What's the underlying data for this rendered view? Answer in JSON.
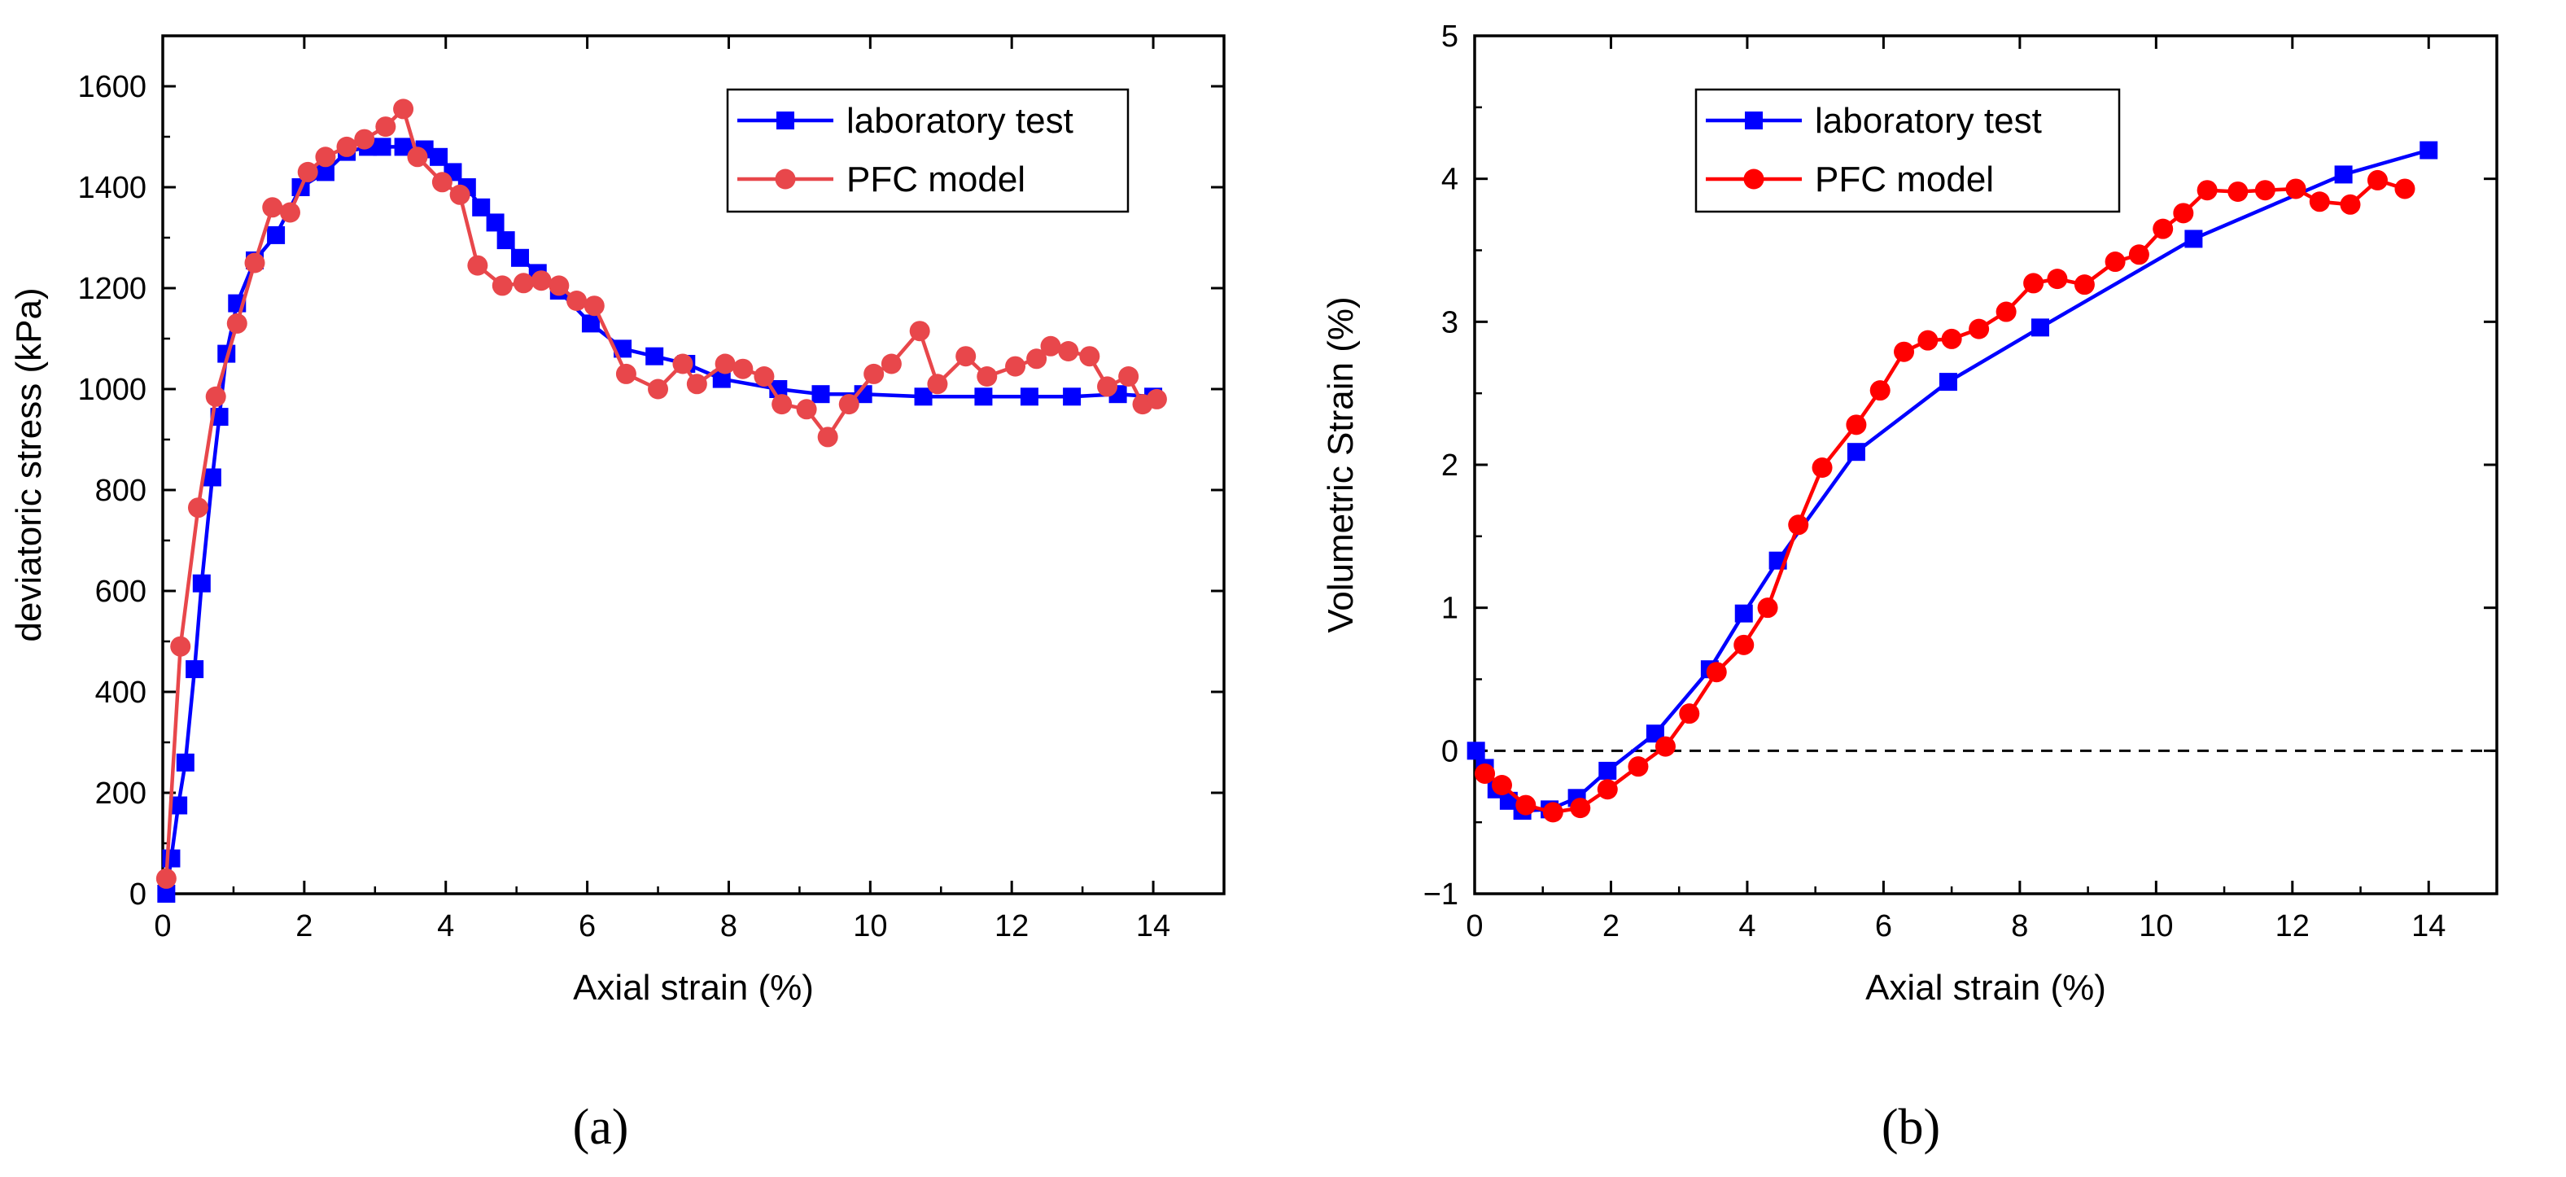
{
  "figure": {
    "panel_a_label": "(a)",
    "panel_b_label": "(b)"
  },
  "colors": {
    "lab": "#0000FF",
    "pfc_a": "#E8474B",
    "pfc_b": "#FF0000",
    "axis": "#000000"
  },
  "chart_data": [
    {
      "type": "line",
      "panel": "a",
      "title": "",
      "xlabel": "Axial strain (%)",
      "ylabel": "deviatoric stress (kPa)",
      "xlim": [
        0,
        15
      ],
      "ylim": [
        0,
        1700
      ],
      "x_ticks": [
        0,
        2,
        4,
        6,
        8,
        10,
        12,
        14
      ],
      "x_tick_labels": [
        "0",
        "2",
        "4",
        "6",
        "8",
        "10",
        "12",
        "14"
      ],
      "y_ticks": [
        0,
        200,
        400,
        600,
        800,
        1000,
        1200,
        1400,
        1600
      ],
      "y_tick_labels": [
        "0",
        "200",
        "400",
        "600",
        "800",
        "1000",
        "1200",
        "1400",
        "1600"
      ],
      "legend_position": "top-right",
      "series": [
        {
          "name": "laboratory test",
          "marker": "square",
          "color": "#0000FF",
          "x": [
            0.05,
            0.12,
            0.22,
            0.32,
            0.45,
            0.55,
            0.7,
            0.8,
            0.9,
            1.05,
            1.3,
            1.6,
            1.95,
            2.3,
            2.6,
            2.9,
            3.1,
            3.4,
            3.7,
            3.9,
            4.1,
            4.3,
            4.5,
            4.7,
            4.85,
            5.05,
            5.3,
            5.6,
            6.05,
            6.5,
            6.95,
            7.4,
            7.9,
            8.7,
            9.3,
            9.9,
            10.75,
            11.6,
            12.25,
            12.85,
            13.5,
            14.0
          ],
          "y": [
            0,
            70,
            175,
            260,
            445,
            615,
            825,
            945,
            1070,
            1170,
            1255,
            1305,
            1400,
            1430,
            1470,
            1480,
            1480,
            1480,
            1475,
            1460,
            1430,
            1400,
            1360,
            1330,
            1295,
            1260,
            1230,
            1195,
            1130,
            1080,
            1065,
            1050,
            1020,
            1000,
            990,
            990,
            985,
            985,
            985,
            985,
            990,
            985
          ]
        },
        {
          "name": "PFC model",
          "marker": "circle",
          "color": "#E8474B",
          "x": [
            0.05,
            0.25,
            0.5,
            0.75,
            1.05,
            1.3,
            1.55,
            1.8,
            2.05,
            2.3,
            2.6,
            2.85,
            3.15,
            3.4,
            3.6,
            3.95,
            4.2,
            4.45,
            4.8,
            5.1,
            5.35,
            5.6,
            5.85,
            6.1,
            6.55,
            7.0,
            7.35,
            7.55,
            7.95,
            8.2,
            8.5,
            8.75,
            9.1,
            9.4,
            9.7,
            10.05,
            10.3,
            10.7,
            10.95,
            11.35,
            11.65,
            12.05,
            12.35,
            12.55,
            12.8,
            13.1,
            13.35,
            13.65,
            13.85,
            14.05
          ],
          "y": [
            30,
            490,
            765,
            985,
            1130,
            1250,
            1360,
            1350,
            1430,
            1460,
            1480,
            1495,
            1520,
            1555,
            1460,
            1410,
            1385,
            1245,
            1205,
            1210,
            1215,
            1205,
            1175,
            1165,
            1030,
            1000,
            1050,
            1010,
            1050,
            1040,
            1025,
            970,
            960,
            905,
            970,
            1030,
            1050,
            1115,
            1010,
            1065,
            1025,
            1045,
            1060,
            1085,
            1075,
            1065,
            1005,
            1025,
            970,
            980
          ]
        }
      ]
    },
    {
      "type": "line",
      "panel": "b",
      "title": "",
      "xlabel": "Axial strain (%)",
      "ylabel": "Volumetric Strain (%)",
      "xlim": [
        0,
        15
      ],
      "ylim": [
        -1,
        5
      ],
      "x_ticks": [
        0,
        2,
        4,
        6,
        8,
        10,
        12,
        14
      ],
      "x_tick_labels": [
        "0",
        "2",
        "4",
        "6",
        "8",
        "10",
        "12",
        "14"
      ],
      "y_ticks": [
        -1,
        0,
        1,
        2,
        3,
        4,
        5
      ],
      "y_tick_labels": [
        "−1",
        "0",
        "1",
        "2",
        "3",
        "4",
        "5"
      ],
      "reference_line": {
        "y": 0,
        "style": "dashed"
      },
      "legend_position": "top-left",
      "series": [
        {
          "name": "laboratory test",
          "marker": "square",
          "color": "#0000FF",
          "x": [
            0.02,
            0.15,
            0.32,
            0.5,
            0.7,
            1.1,
            1.5,
            1.95,
            2.65,
            3.45,
            3.95,
            4.45,
            5.6,
            6.95,
            8.3,
            10.55,
            12.75,
            14.0
          ],
          "y": [
            0.0,
            -0.12,
            -0.27,
            -0.35,
            -0.42,
            -0.41,
            -0.33,
            -0.14,
            0.12,
            0.57,
            0.96,
            1.33,
            2.09,
            2.58,
            2.96,
            3.58,
            4.03,
            4.2
          ]
        },
        {
          "name": "PFC model",
          "marker": "circle",
          "color": "#FF0000",
          "x": [
            0.15,
            0.4,
            0.75,
            1.15,
            1.55,
            1.95,
            2.4,
            2.8,
            3.15,
            3.55,
            3.95,
            4.3,
            4.75,
            5.1,
            5.6,
            5.95,
            6.3,
            6.65,
            7.0,
            7.4,
            7.8,
            8.2,
            8.55,
            8.95,
            9.4,
            9.75,
            10.1,
            10.4,
            10.75,
            11.2,
            11.6,
            12.05,
            12.4,
            12.85,
            13.25,
            13.65
          ],
          "y": [
            -0.16,
            -0.24,
            -0.38,
            -0.43,
            -0.4,
            -0.27,
            -0.11,
            0.03,
            0.26,
            0.55,
            0.74,
            1.0,
            1.58,
            1.98,
            2.28,
            2.52,
            2.79,
            2.87,
            2.88,
            2.95,
            3.07,
            3.27,
            3.3,
            3.26,
            3.42,
            3.47,
            3.65,
            3.76,
            3.92,
            3.91,
            3.92,
            3.93,
            3.84,
            3.82,
            3.99,
            3.93
          ]
        }
      ]
    }
  ]
}
